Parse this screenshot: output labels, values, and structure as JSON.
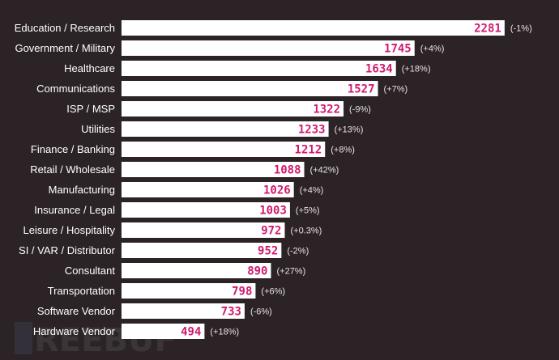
{
  "chart_data": {
    "type": "bar",
    "orientation": "horizontal",
    "categories": [
      "Education / Research",
      "Government / Military",
      "Healthcare",
      "Communications",
      "ISP / MSP",
      "Utilities",
      "Finance / Banking",
      "Retail / Wholesale",
      "Manufacturing",
      "Insurance / Legal",
      "Leisure / Hospitality",
      "SI / VAR / Distributor",
      "Consultant",
      "Transportation",
      "Software Vendor",
      "Hardware Vendor"
    ],
    "values": [
      2281,
      1745,
      1634,
      1527,
      1322,
      1233,
      1212,
      1088,
      1026,
      1003,
      972,
      952,
      890,
      798,
      733,
      494
    ],
    "changes": [
      "(-1%)",
      "(+4%)",
      "(+18%)",
      "(+7%)",
      "(-9%)",
      "(+13%)",
      "(+8%)",
      "(+42%)",
      "(+4%)",
      "(+5%)",
      "(+0.3%)",
      "(-2%)",
      "(+27%)",
      "(+6%)",
      "(-6%)",
      "(+18%)"
    ],
    "title": "",
    "xlabel": "",
    "ylabel": "",
    "grid": false,
    "colors": {
      "background": "#2c2326",
      "bar": "#ffffff",
      "value": "#d1196e",
      "change": "#e8e2e4",
      "category": "#ffffff"
    }
  },
  "watermark": {
    "text": "REEBUF"
  }
}
